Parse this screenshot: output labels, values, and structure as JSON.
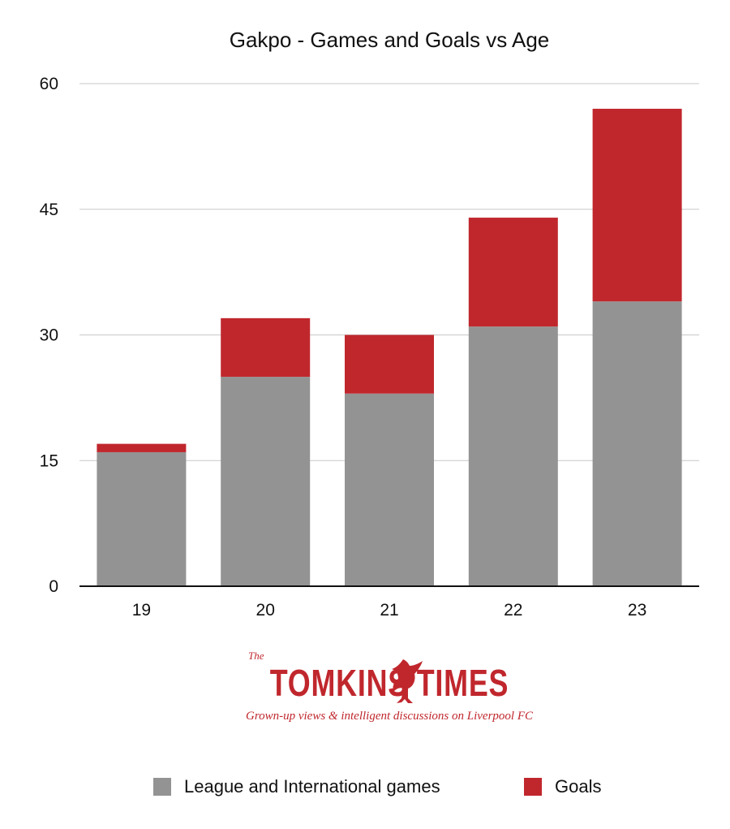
{
  "chart_data": {
    "type": "bar",
    "stacked": true,
    "title": "Gakpo - Games and Goals vs Age",
    "categories": [
      "19",
      "20",
      "21",
      "22",
      "23"
    ],
    "series": [
      {
        "name": "League and International games",
        "values": [
          16,
          25,
          23,
          31,
          34
        ],
        "color": "#939393"
      },
      {
        "name": "Goals",
        "values": [
          1,
          7,
          7,
          13,
          23
        ],
        "color": "#c0272d"
      }
    ],
    "yticks": [
      "0",
      "15",
      "30",
      "45",
      "60"
    ],
    "ylim": [
      0,
      60
    ],
    "grid": true,
    "legend_position": "bottom"
  },
  "branding": {
    "the": "The",
    "name": "TOMKINS TIMES",
    "tagline": "Grown-up views & intelligent discussions on Liverpool FC"
  }
}
